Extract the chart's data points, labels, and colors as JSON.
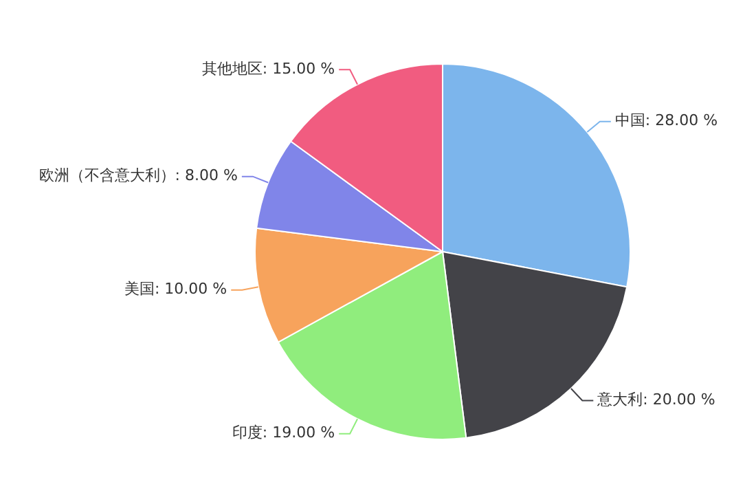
{
  "chart_data": {
    "type": "pie",
    "categories": [
      "中国",
      "意大利",
      "印度",
      "美国",
      "欧洲（不含意大利）",
      "其他地区"
    ],
    "values": [
      28,
      20,
      19,
      10,
      8,
      15
    ],
    "value_labels": [
      "28.00 %",
      "20.00 %",
      "19.00 %",
      "10.00 %",
      "8.00 %",
      "15.00 %"
    ],
    "colors": [
      "#7cb5ec",
      "#434348",
      "#90ed7d",
      "#f7a35c",
      "#8085e9",
      "#f15c80"
    ],
    "legend": false
  }
}
